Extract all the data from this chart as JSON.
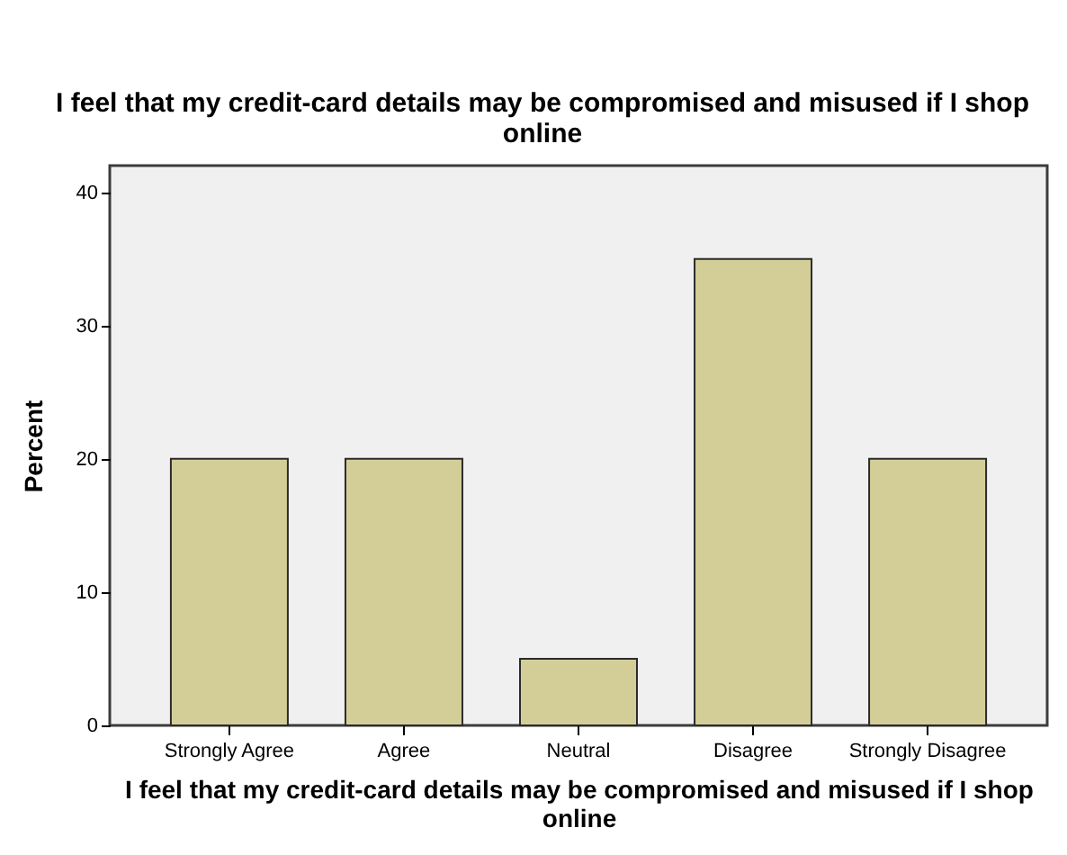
{
  "chart_data": {
    "type": "bar",
    "title": "I feel that my credit-card details may be compromised and misused if I shop online",
    "xlabel": "I feel that my credit-card details may be compromised and misused if I shop online",
    "ylabel": "Percent",
    "categories": [
      "Strongly Agree",
      "Agree",
      "Neutral",
      "Disagree",
      "Strongly Disagree"
    ],
    "values": [
      20,
      20,
      5,
      35,
      20
    ],
    "color": "#d3ce97",
    "ylim": [
      0,
      42
    ],
    "yticks": [
      0,
      10,
      20,
      30,
      40
    ]
  }
}
